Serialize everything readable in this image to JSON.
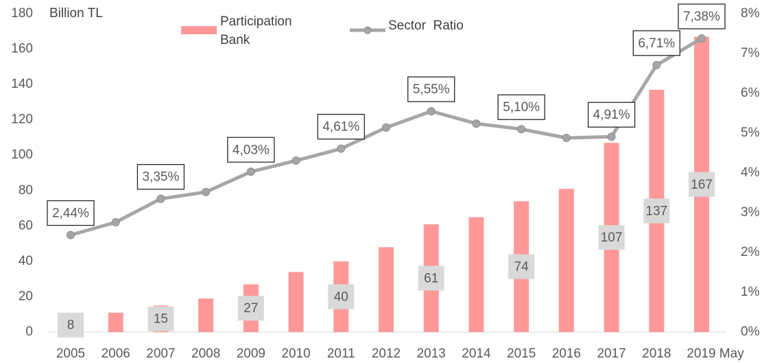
{
  "chart_data": {
    "type": "bar+line",
    "y_label": "Billion TL",
    "categories": [
      "2005",
      "2006",
      "2007",
      "2008",
      "2009",
      "2010",
      "2011",
      "2012",
      "2013",
      "2014",
      "2015",
      "2016",
      "2017",
      "2018",
      "2019 May"
    ],
    "series": [
      {
        "name": "Participation Bank",
        "type": "bar",
        "color": "#ff9999",
        "values": [
          8,
          11,
          15,
          19,
          27,
          34,
          40,
          48,
          61,
          65,
          74,
          81,
          107,
          137,
          167
        ],
        "value_labels": [
          "8",
          null,
          "15",
          null,
          "27",
          null,
          "40",
          null,
          "61",
          null,
          "74",
          null,
          "107",
          "137",
          "167"
        ]
      },
      {
        "name": "Sector  Ratio",
        "type": "line",
        "axis": "y2",
        "color": "#a6a6a6",
        "values": [
          2.44,
          2.76,
          3.35,
          3.52,
          4.03,
          4.31,
          4.61,
          5.14,
          5.55,
          5.24,
          5.1,
          4.88,
          4.91,
          6.71,
          7.38
        ],
        "value_labels": [
          "2,44%",
          null,
          "3,35%",
          null,
          "4,03%",
          null,
          "4,61%",
          null,
          "5,55%",
          null,
          "5,10%",
          null,
          "4,91%",
          "6,71%",
          "7,38%"
        ]
      }
    ],
    "ylim": [
      0,
      180
    ],
    "yticks": [
      0,
      20,
      40,
      60,
      80,
      100,
      120,
      140,
      160,
      180
    ],
    "y2lim": [
      0,
      8
    ],
    "y2ticks": [
      {
        "value": 0,
        "label": "0%"
      },
      {
        "value": 1,
        "label": "1%"
      },
      {
        "value": 2,
        "label": "2%"
      },
      {
        "value": 3,
        "label": "3%"
      },
      {
        "value": 4,
        "label": "4%"
      },
      {
        "value": 5,
        "label": "5%"
      },
      {
        "value": 6,
        "label": "6%"
      },
      {
        "value": 7,
        "label": "7%"
      },
      {
        "value": 8,
        "label": "8%"
      }
    ],
    "grid": false,
    "legend": "top"
  }
}
